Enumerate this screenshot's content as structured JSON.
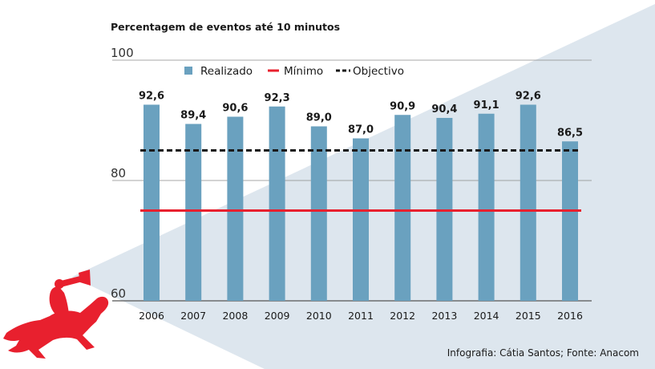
{
  "chart_data": {
    "type": "bar",
    "title": "Percentagem de eventos até 10 minutos",
    "categories": [
      "2006",
      "2007",
      "2008",
      "2009",
      "2010",
      "2011",
      "2012",
      "2013",
      "2014",
      "2015",
      "2016"
    ],
    "series": [
      {
        "name": "Realizado",
        "values": [
          92.6,
          89.4,
          90.6,
          92.3,
          89.0,
          87.0,
          90.9,
          90.4,
          91.1,
          92.6,
          86.5
        ]
      }
    ],
    "data_labels": [
      "92,6",
      "89,4",
      "90,6",
      "92,3",
      "89,0",
      "87,0",
      "90,9",
      "90,4",
      "91,1",
      "92,6",
      "86,5"
    ],
    "reference_lines": [
      {
        "name": "Mínimo",
        "value": 75,
        "style": "solid",
        "color": "#e8202e"
      },
      {
        "name": "Objectivo",
        "value": 85,
        "style": "dashed",
        "color": "#1a1a1a"
      }
    ],
    "ylim": [
      60,
      100
    ],
    "yticks": [
      {
        "value": 60,
        "label": "60"
      },
      {
        "value": 80,
        "label": "80"
      },
      {
        "value": 100,
        "label": "100"
      }
    ],
    "xlabel": "",
    "ylabel": "",
    "legend_position": "top-left",
    "grid": true
  },
  "legend": {
    "realizado": "Realizado",
    "minimo": "Mínimo",
    "objectivo": "Objectivo"
  },
  "source": "Infografia: Cátia Santos; Fonte: Anacom",
  "logo_icon": "horse-trumpeter-icon",
  "colors": {
    "bar": "#6aa1bf",
    "minimo": "#e8202e",
    "objectivo": "#1a1a1a",
    "background_triangle": "#dde6ee",
    "logo": "#e8202e"
  }
}
